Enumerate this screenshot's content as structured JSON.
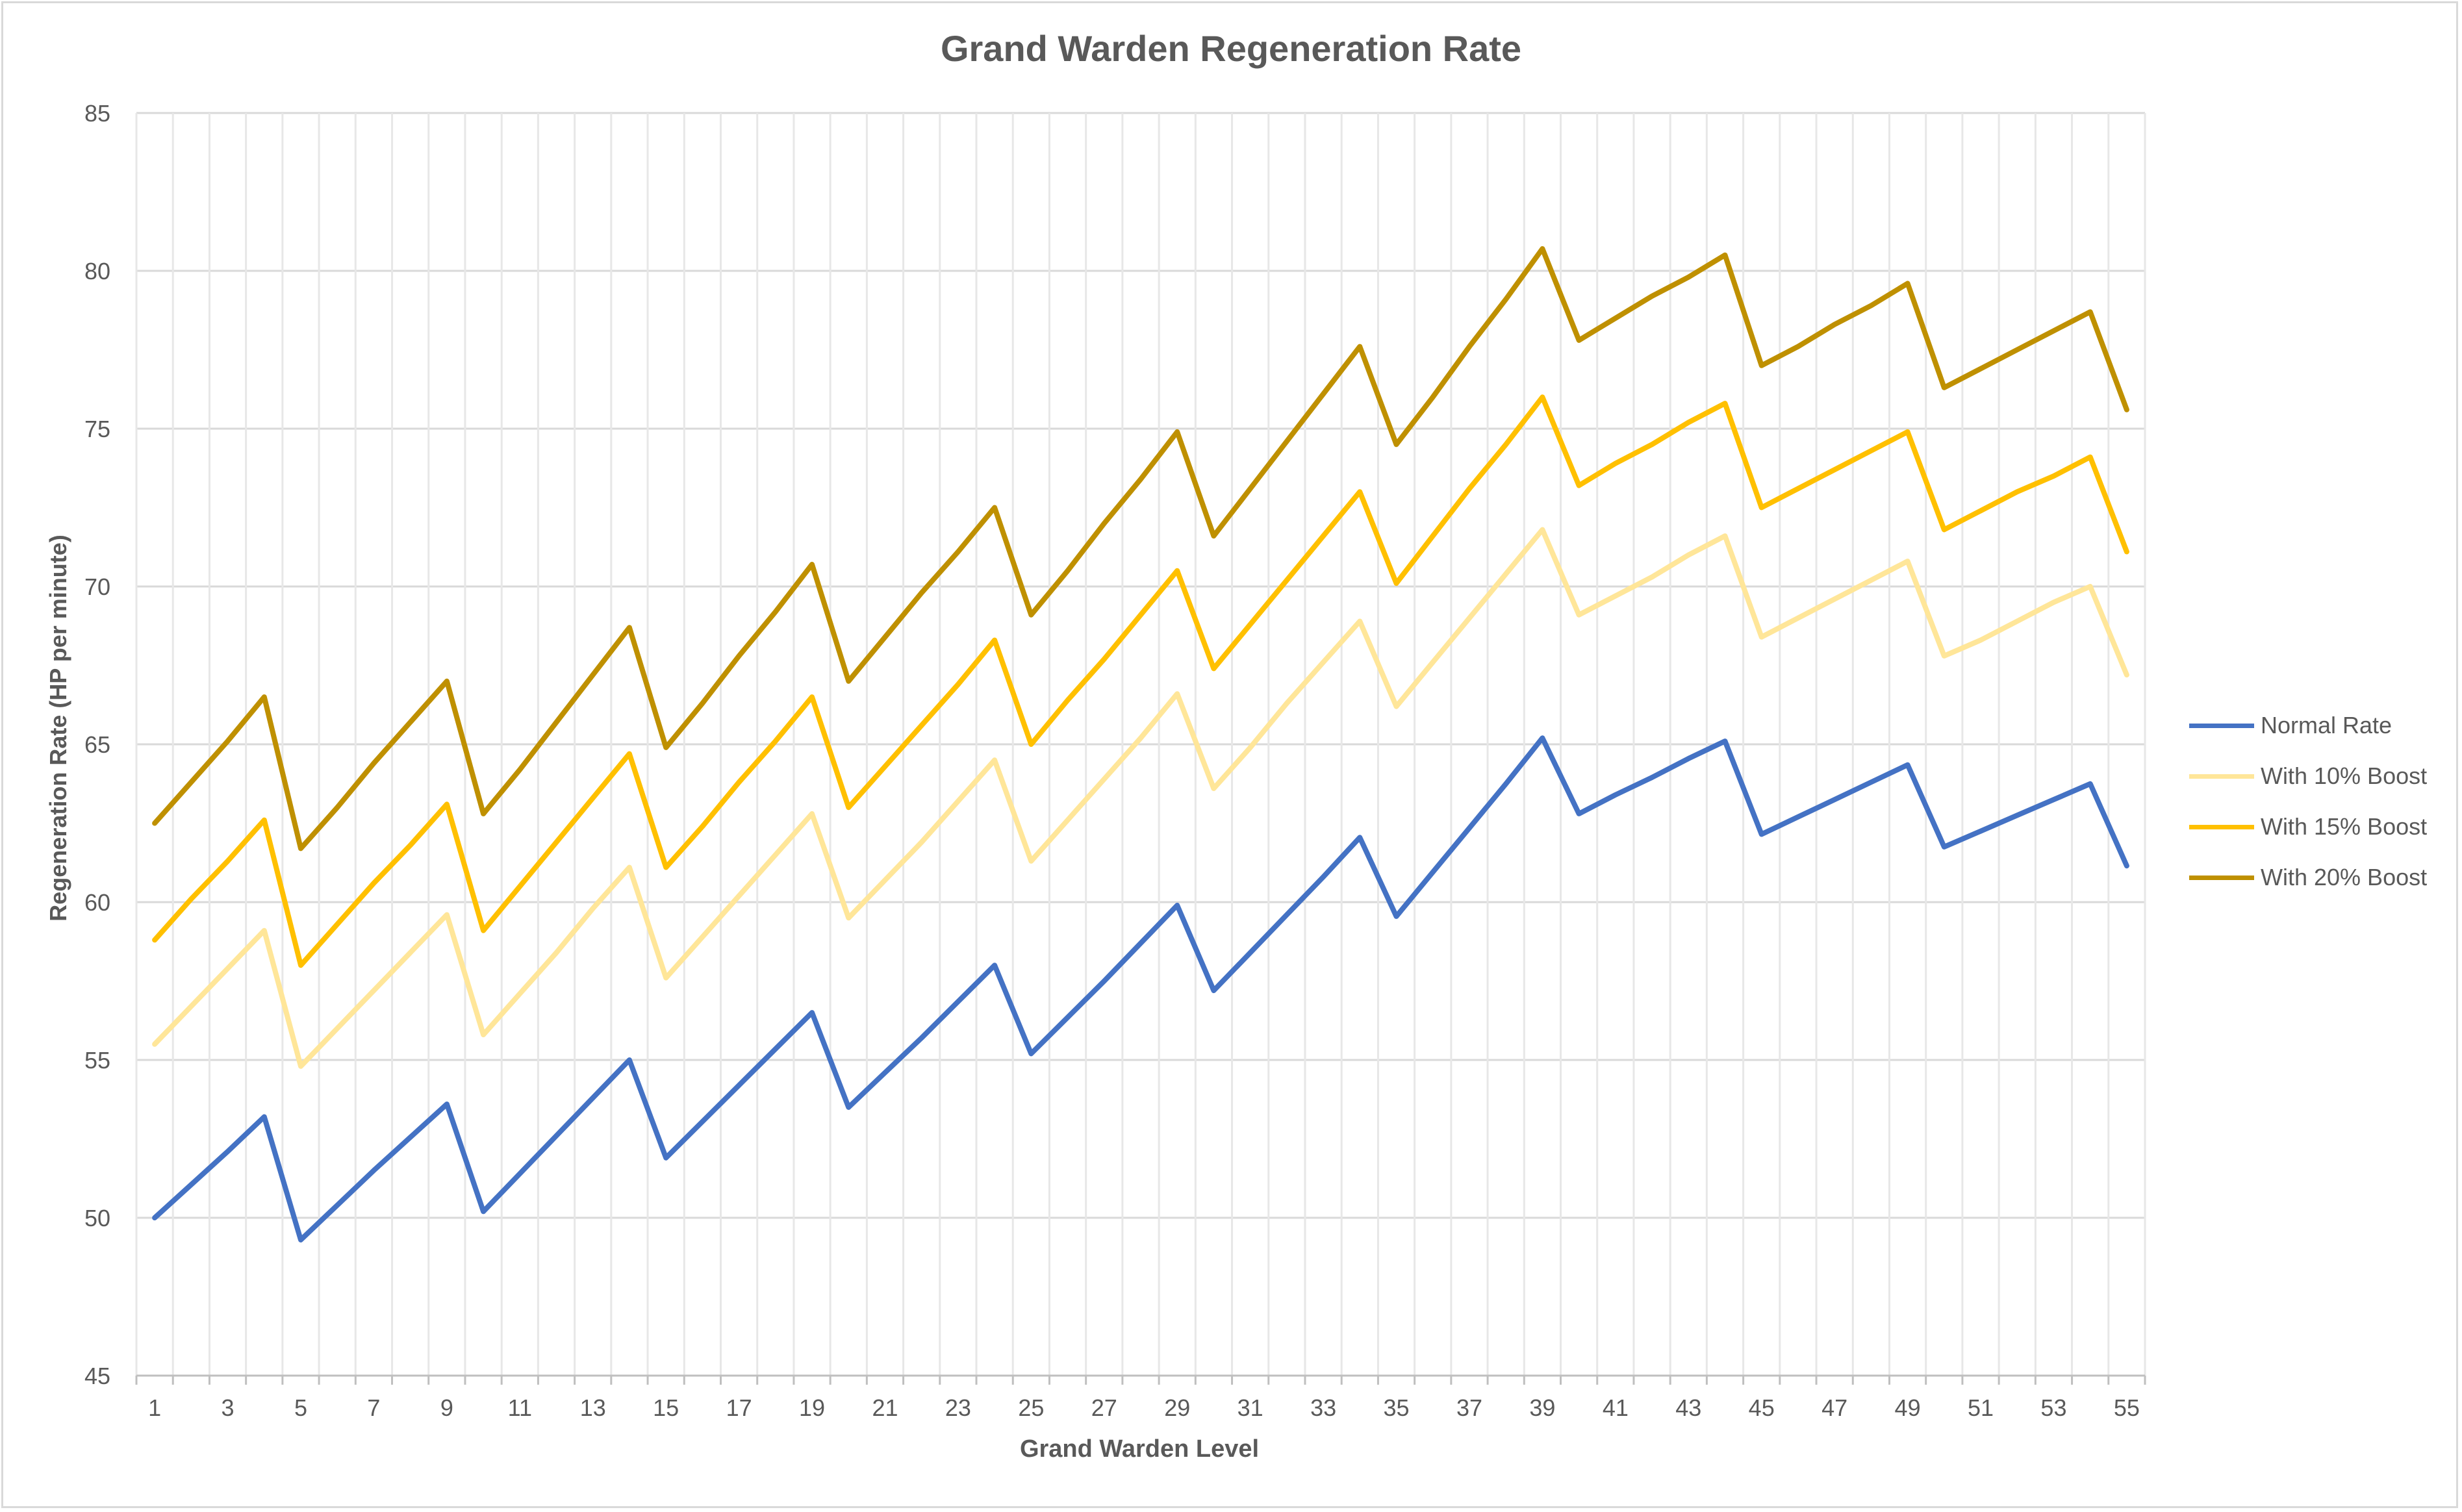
{
  "chart_data": {
    "type": "line",
    "title": "Grand Warden Regeneration Rate",
    "xlabel": "Grand Warden Level",
    "ylabel": "Regeneration Rate (HP per minute)",
    "ylim": [
      45,
      85
    ],
    "yticks": [
      45,
      50,
      55,
      60,
      65,
      70,
      75,
      80,
      85
    ],
    "grid": true,
    "legend_position": "right",
    "x": [
      1,
      2,
      3,
      4,
      5,
      6,
      7,
      8,
      9,
      10,
      11,
      12,
      13,
      14,
      15,
      16,
      17,
      18,
      19,
      20,
      21,
      22,
      23,
      24,
      25,
      26,
      27,
      28,
      29,
      30,
      31,
      32,
      33,
      34,
      35,
      36,
      37,
      38,
      39,
      40,
      41,
      42,
      43,
      44,
      45,
      46,
      47,
      48,
      49,
      50,
      51,
      52,
      53,
      54,
      55
    ],
    "xtick_labels": [
      "1",
      "3",
      "5",
      "7",
      "9",
      "11",
      "13",
      "15",
      "17",
      "19",
      "21",
      "23",
      "25",
      "27",
      "29",
      "31",
      "33",
      "35",
      "37",
      "39",
      "41",
      "43",
      "45",
      "47",
      "49",
      "51",
      "53",
      "55"
    ],
    "series": [
      {
        "name": "Normal Rate",
        "color": "#4472c4",
        "values": [
          50,
          51.05,
          52.1,
          53.2,
          49.3,
          50.4,
          51.5,
          52.55,
          53.6,
          50.2,
          51.4,
          52.6,
          53.8,
          55,
          51.9,
          53.05,
          54.2,
          55.35,
          56.5,
          53.5,
          54.6,
          55.7,
          56.85,
          58,
          55.2,
          56.35,
          57.5,
          58.7,
          59.9,
          57.2,
          58.4,
          59.6,
          60.8,
          62.05,
          59.55,
          60.95,
          62.35,
          63.75,
          65.2,
          62.8,
          63.4,
          63.95,
          64.55,
          65.1,
          62.15,
          62.7,
          63.25,
          63.8,
          64.35,
          61.75,
          62.25,
          62.75,
          63.25,
          63.75,
          61.15
        ]
      },
      {
        "name": "With 10% Boost",
        "color": "#ffe699",
        "values": [
          55.5,
          56.7,
          57.9,
          59.1,
          54.8,
          56,
          57.2,
          58.4,
          59.6,
          55.8,
          57.1,
          58.4,
          59.8,
          61.1,
          57.6,
          58.9,
          60.2,
          61.5,
          62.8,
          59.5,
          60.7,
          61.9,
          63.2,
          64.5,
          61.3,
          62.6,
          63.9,
          65.2,
          66.6,
          63.6,
          64.9,
          66.3,
          67.6,
          68.9,
          66.2,
          67.6,
          69,
          70.4,
          71.8,
          69.1,
          69.7,
          70.3,
          71,
          71.6,
          68.4,
          69,
          69.6,
          70.2,
          70.8,
          67.8,
          68.3,
          68.9,
          69.5,
          70,
          67.2
        ]
      },
      {
        "name": "With 15% Boost",
        "color": "#ffc000",
        "values": [
          58.8,
          60.1,
          61.3,
          62.6,
          58,
          59.3,
          60.6,
          61.8,
          63.1,
          59.1,
          60.5,
          61.9,
          63.3,
          64.7,
          61.1,
          62.4,
          63.8,
          65.1,
          66.5,
          63,
          64.3,
          65.6,
          66.9,
          68.3,
          65,
          66.4,
          67.7,
          69.1,
          70.5,
          67.4,
          68.8,
          70.2,
          71.6,
          73,
          70.1,
          71.6,
          73.1,
          74.5,
          76,
          73.2,
          73.9,
          74.5,
          75.2,
          75.8,
          72.5,
          73.1,
          73.7,
          74.3,
          74.9,
          71.8,
          72.4,
          73,
          73.5,
          74.1,
          71.1
        ]
      },
      {
        "name": "With 20% Boost",
        "color": "#bf9000",
        "values": [
          62.5,
          63.8,
          65.1,
          66.5,
          61.7,
          63,
          64.4,
          65.7,
          67,
          62.8,
          64.2,
          65.7,
          67.2,
          68.7,
          64.9,
          66.3,
          67.8,
          69.2,
          70.7,
          67,
          68.4,
          69.8,
          71.1,
          72.5,
          69.1,
          70.5,
          72,
          73.4,
          74.9,
          71.6,
          73.1,
          74.6,
          76.1,
          77.6,
          74.5,
          76,
          77.6,
          79.1,
          80.7,
          77.8,
          78.5,
          79.2,
          79.8,
          80.5,
          77,
          77.6,
          78.3,
          78.9,
          79.6,
          76.3,
          76.9,
          77.5,
          78.1,
          78.7,
          75.6
        ]
      }
    ]
  }
}
